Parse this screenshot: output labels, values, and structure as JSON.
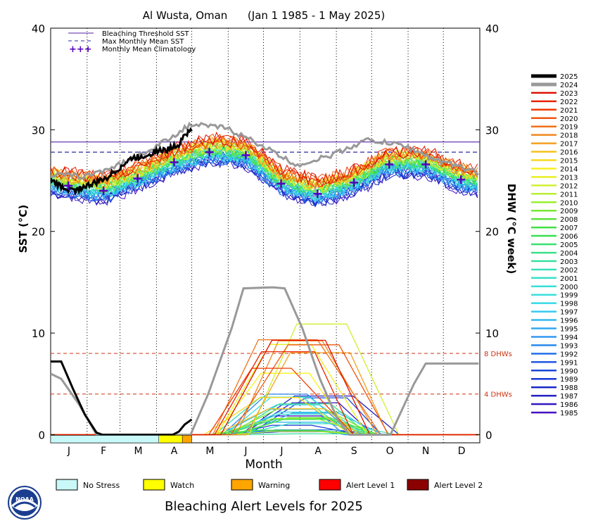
{
  "chart_data": {
    "type": "line",
    "title": "Al Wusta, Oman      (Jan 1 1985 - 1 May 2025)",
    "xlabel": "Month",
    "ylabel_left": "SST (°C)",
    "ylabel_right": "DHW (°C week)",
    "ylim": [
      -0.8,
      40
    ],
    "yticks_left": [
      "0",
      "10",
      "20",
      "30",
      "40"
    ],
    "yticks_right": [
      "0",
      "10",
      "20",
      "30",
      "40"
    ],
    "months": [
      "J",
      "F",
      "M",
      "A",
      "M",
      "J",
      "J",
      "A",
      "S",
      "O",
      "N",
      "D"
    ],
    "legend": {
      "placement": "top-left",
      "entries": [
        {
          "label": "Bleaching Threshold SST",
          "color": "#5522aa",
          "style": "solid"
        },
        {
          "label": "Max Monthly Mean SST",
          "color": "#2a2aa0",
          "style": "dashed"
        },
        {
          "label": "Monthly Mean Climatology",
          "color": "#5500bb",
          "style": "plus"
        }
      ]
    },
    "bleaching_threshold_sst": 28.8,
    "max_monthly_mean_sst": 27.8,
    "climatology": {
      "months": [
        1,
        2,
        3,
        4,
        5,
        6,
        7,
        8,
        9,
        10,
        11,
        12
      ],
      "values": [
        24.5,
        24.0,
        25.2,
        26.8,
        27.8,
        27.5,
        24.7,
        23.7,
        24.8,
        26.6,
        26.6,
        25.1
      ]
    },
    "dhw_reference_lines": [
      {
        "value": 8,
        "label": "8 DHWs",
        "color": "#cc3311"
      },
      {
        "value": 4,
        "label": "4 DHWs",
        "color": "#cc3311"
      }
    ],
    "years": [
      "2025",
      "2024",
      "2023",
      "2022",
      "2021",
      "2020",
      "2019",
      "2018",
      "2017",
      "2016",
      "2015",
      "2014",
      "2013",
      "2012",
      "2011",
      "2010",
      "2009",
      "2008",
      "2007",
      "2006",
      "2005",
      "2004",
      "2003",
      "2002",
      "2001",
      "2000",
      "1999",
      "1998",
      "1997",
      "1996",
      "1995",
      "1994",
      "1993",
      "1992",
      "1991",
      "1990",
      "1989",
      "1988",
      "1987",
      "1986",
      "1985"
    ],
    "year_colors": [
      "#000000",
      "#999999",
      "#dd1100",
      "#e82200",
      "#f03800",
      "#ee5511",
      "#f07018",
      "#f08820",
      "#f2a020",
      "#f8c020",
      "#f8d820",
      "#f8f020",
      "#e8f020",
      "#d0f030",
      "#b8f030",
      "#98f030",
      "#78e830",
      "#58e038",
      "#40e040",
      "#38e050",
      "#38e070",
      "#38e088",
      "#38e0a0",
      "#38e0b8",
      "#38e0c8",
      "#38e0d8",
      "#38e0e0",
      "#38d8e8",
      "#38c8f0",
      "#30b8f0",
      "#30a8f0",
      "#3098f0",
      "#2888f0",
      "#2070e8",
      "#2058e0",
      "#1848d8",
      "#1838d0",
      "#1828c8",
      "#2020c0",
      "#3018c0",
      "#4410c0"
    ],
    "series_2025_sst": {
      "day": [
        1,
        10,
        20,
        30,
        40,
        50,
        60,
        70,
        80,
        90,
        100,
        110,
        115,
        121
      ],
      "sst": [
        25.0,
        24.4,
        24.0,
        24.4,
        24.8,
        25.4,
        26.3,
        27.2,
        27.4,
        27.9,
        28.0,
        28.6,
        29.6,
        29.9
      ]
    },
    "series_2024_sst": {
      "day": [
        1,
        30,
        60,
        90,
        120,
        150,
        180,
        210,
        240,
        270,
        300,
        330,
        365
      ],
      "sst": [
        25.6,
        25.4,
        26.6,
        28.3,
        30.5,
        30.2,
        28.5,
        26.5,
        27.5,
        29.0,
        28.5,
        27.0,
        25.8
      ]
    },
    "series_2025_dhw": {
      "day": [
        1,
        10,
        20,
        30,
        40,
        45,
        105,
        110,
        115,
        121
      ],
      "dhw": [
        7.2,
        7.2,
        4.5,
        2.0,
        0.2,
        0,
        0,
        0.3,
        1.0,
        1.5
      ]
    },
    "series_2024_dhw": {
      "day": [
        1,
        10,
        25,
        40,
        120,
        135,
        155,
        165,
        190,
        200,
        215,
        230,
        245,
        255,
        275,
        290,
        310,
        320,
        365
      ],
      "dhw": [
        6.0,
        5.5,
        3.0,
        0,
        0,
        4.0,
        10.5,
        14.4,
        14.5,
        14.4,
        10.5,
        5.5,
        1.5,
        0,
        0,
        0,
        5.0,
        7.0,
        7.0
      ]
    },
    "alert_strip_2025": [
      {
        "from_day": 1,
        "to_day": 93,
        "level": "No Stress"
      },
      {
        "from_day": 93,
        "to_day": 113,
        "level": "Watch"
      },
      {
        "from_day": 113,
        "to_day": 121,
        "level": "Warning"
      }
    ]
  },
  "bottom_legend": {
    "title": "Bleaching Alert Levels for 2025",
    "items": [
      {
        "label": "No Stress",
        "color": "#c8f8f8"
      },
      {
        "label": "Watch",
        "color": "#ffff00"
      },
      {
        "label": "Warning",
        "color": "#ffa500"
      },
      {
        "label": "Alert Level 1",
        "color": "#ff0000"
      },
      {
        "label": "Alert Level 2",
        "color": "#8b0000"
      }
    ]
  },
  "logo": {
    "text": "NOAA"
  }
}
